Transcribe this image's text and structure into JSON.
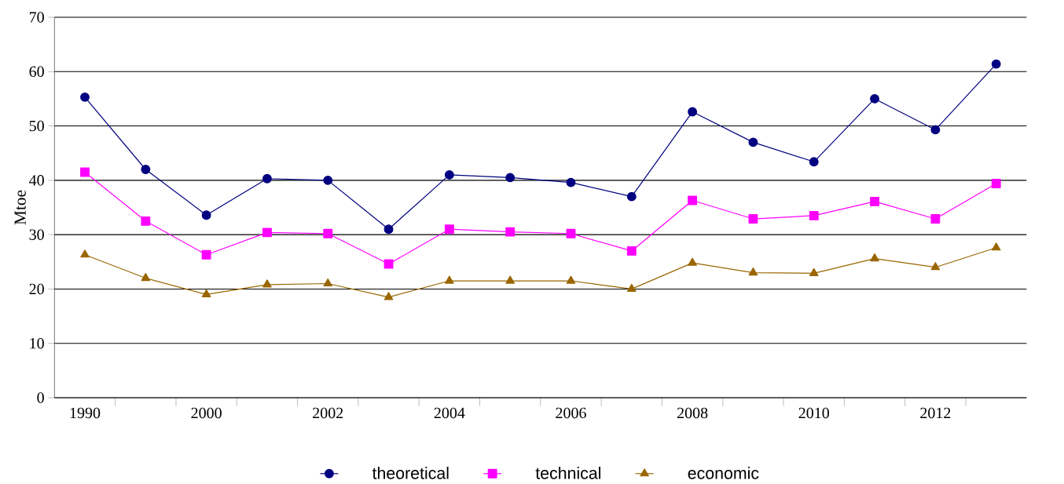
{
  "chart_data": {
    "type": "line",
    "ylabel": "Mtoe",
    "categories": [
      "1990",
      null,
      "2000",
      null,
      "2002",
      null,
      "2004",
      null,
      "2006",
      null,
      "2008",
      null,
      "2010",
      null,
      "2012",
      null
    ],
    "series": [
      {
        "name": "theoretical",
        "color": "#000080",
        "marker": "circle",
        "values": [
          55.3,
          42,
          33.6,
          40.3,
          40,
          31,
          41,
          40.5,
          39.6,
          37,
          52.6,
          47,
          43.4,
          55,
          49.3,
          61.4
        ]
      },
      {
        "name": "technical",
        "color": "#ff00ff",
        "marker": "square",
        "values": [
          41.5,
          32.5,
          26.3,
          30.4,
          30.2,
          24.6,
          31,
          30.5,
          30.2,
          27,
          36.3,
          32.9,
          33.5,
          36.1,
          32.9,
          39.4
        ]
      },
      {
        "name": "economic",
        "color": "#996600",
        "marker": "triangle",
        "values": [
          26.3,
          22,
          19,
          20.8,
          21,
          18.5,
          21.5,
          21.5,
          21.5,
          20,
          24.8,
          23,
          22.9,
          25.6,
          24,
          27.6
        ]
      }
    ],
    "ylim": [
      0,
      70
    ],
    "yticks": [
      0,
      10,
      20,
      30,
      40,
      50,
      60,
      70
    ],
    "grid": "y",
    "legend": "bottom",
    "line_style": "solid"
  }
}
